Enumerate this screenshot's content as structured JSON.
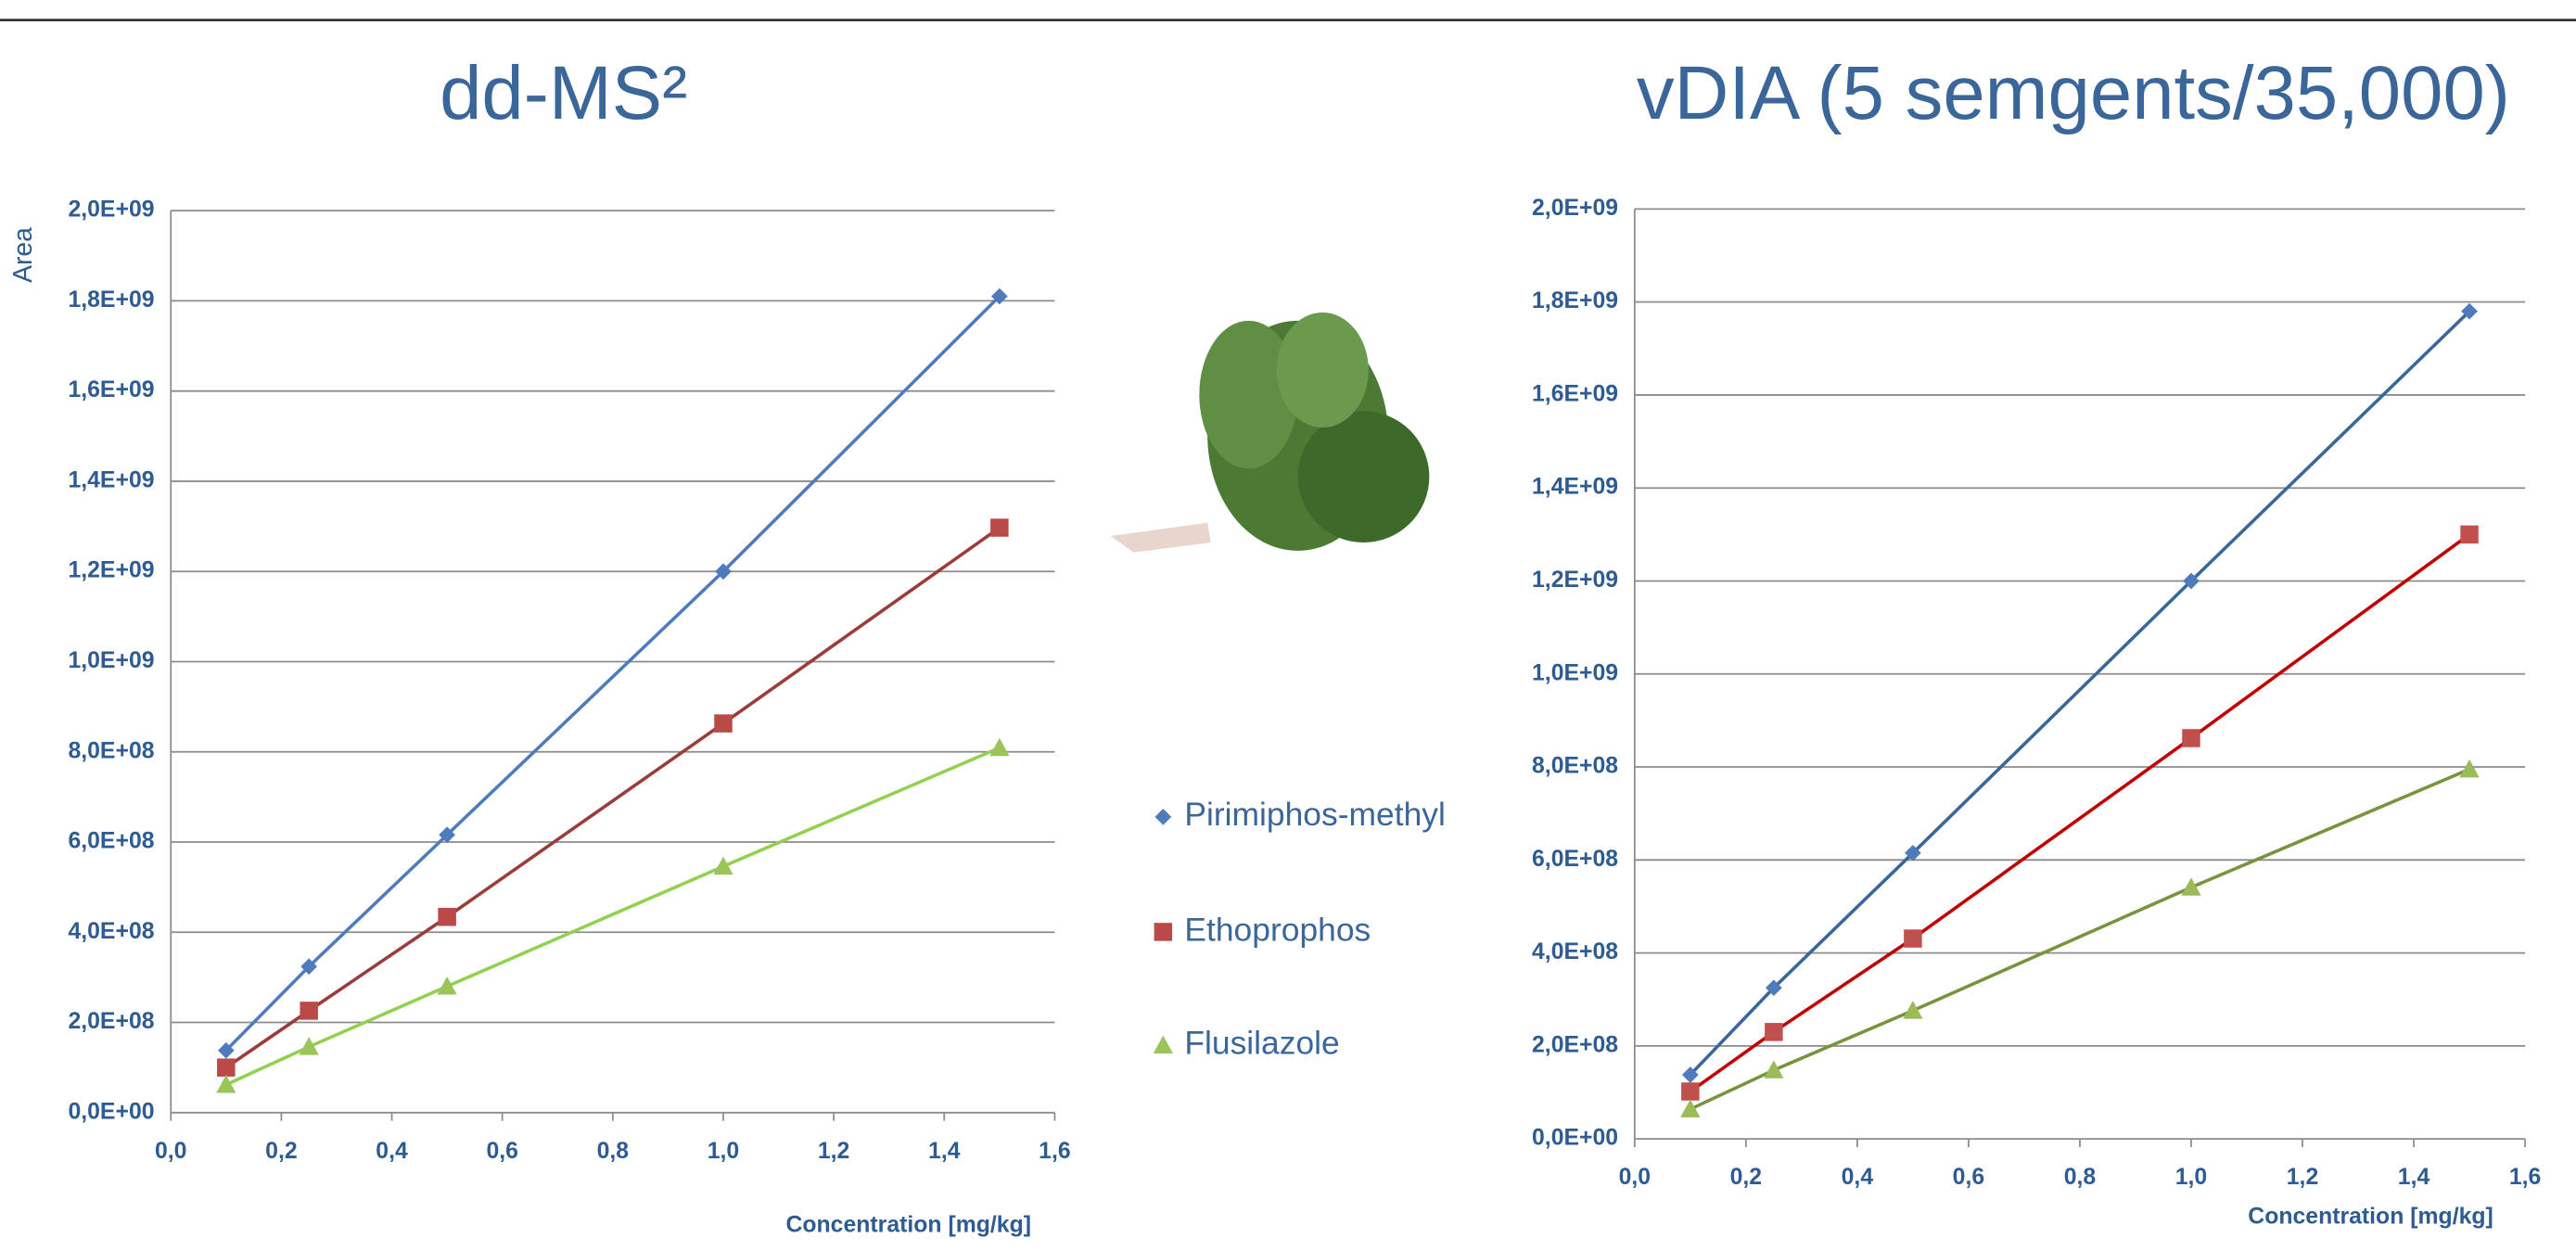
{
  "chart_data": [
    {
      "type": "line",
      "title": "dd-MS²",
      "y_label": "Area",
      "x_label": "Concentration [mg/kg]",
      "x": [
        0.1,
        0.25,
        0.5,
        1.0,
        1.5
      ],
      "series": [
        {
          "name": "Pirimiphos-methyl",
          "color": "#4f7bbd",
          "marker": "diamond",
          "values": [
            138000000,
            324000000,
            616000000,
            1200000000,
            1810000000
          ]
        },
        {
          "name": "Ethoprophos",
          "color": "#b94a48",
          "line_color": "#9b3b3a",
          "marker": "square",
          "values": [
            100000000,
            226000000,
            434000000,
            863000000,
            1297000000
          ]
        },
        {
          "name": "Flusilazole",
          "color": "#9bc55a",
          "line_color": "#92d050",
          "marker": "triangle",
          "values": [
            62000000,
            146000000,
            280000000,
            546000000,
            809000000
          ]
        }
      ],
      "xlim": [
        0,
        1.6
      ],
      "ylim": [
        0,
        2000000000
      ],
      "xticks": [
        {
          "value": 0,
          "label": "0,0"
        },
        {
          "value": 0.2,
          "label": "0,2"
        },
        {
          "value": 0.4,
          "label": "0,4"
        },
        {
          "value": 0.6,
          "label": "0,6"
        },
        {
          "value": 0.8,
          "label": "0,8"
        },
        {
          "value": 1.0,
          "label": "1,0"
        },
        {
          "value": 1.2,
          "label": "1,2"
        },
        {
          "value": 1.4,
          "label": "1,4"
        },
        {
          "value": 1.6,
          "label": "1,6"
        }
      ],
      "yticks": [
        {
          "value": 0,
          "label": "0,0E+00"
        },
        {
          "value": 200000000,
          "label": "2,0E+08"
        },
        {
          "value": 400000000,
          "label": "4,0E+08"
        },
        {
          "value": 600000000,
          "label": "6,0E+08"
        },
        {
          "value": 800000000,
          "label": "8,0E+08"
        },
        {
          "value": 1000000000,
          "label": "1,0E+09"
        },
        {
          "value": 1200000000,
          "label": "1,2E+09"
        },
        {
          "value": 1400000000,
          "label": "1,4E+09"
        },
        {
          "value": 1600000000,
          "label": "1,6E+09"
        },
        {
          "value": 1800000000,
          "label": "1,8E+09"
        },
        {
          "value": 2000000000,
          "label": "2,0E+09"
        }
      ],
      "grid": true
    },
    {
      "type": "line",
      "title": "vDIA (5 semgents/35,000)",
      "x_label": "Concentration [mg/kg]",
      "x": [
        0.1,
        0.25,
        0.5,
        1.0,
        1.5
      ],
      "series": [
        {
          "color": "#4f7bbd",
          "line_color": "#3a6699",
          "marker": "diamond",
          "values": [
            138000000,
            325000000,
            615000000,
            1200000000,
            1780000000
          ]
        },
        {
          "color": "#c0504d",
          "line_color": "#c00000",
          "marker": "square",
          "values": [
            102000000,
            230000000,
            431000000,
            862000000,
            1300000000
          ]
        },
        {
          "color": "#9bbb59",
          "line_color": "#77933c",
          "marker": "triangle",
          "values": [
            64000000,
            148000000,
            276000000,
            541000000,
            795000000
          ]
        }
      ],
      "xlim": [
        0,
        1.6
      ],
      "ylim": [
        0,
        2000000000
      ],
      "xticks": [
        {
          "value": 0,
          "label": "0,0"
        },
        {
          "value": 0.2,
          "label": "0,2"
        },
        {
          "value": 0.4,
          "label": "0,4"
        },
        {
          "value": 0.6,
          "label": "0,6"
        },
        {
          "value": 0.8,
          "label": "0,8"
        },
        {
          "value": 1.0,
          "label": "1,0"
        },
        {
          "value": 1.2,
          "label": "1,2"
        },
        {
          "value": 1.4,
          "label": "1,4"
        },
        {
          "value": 1.6,
          "label": "1,6"
        }
      ],
      "yticks": [
        {
          "value": 0,
          "label": "0,0E+00"
        },
        {
          "value": 200000000,
          "label": "2,0E+08"
        },
        {
          "value": 400000000,
          "label": "4,0E+08"
        },
        {
          "value": 600000000,
          "label": "6,0E+08"
        },
        {
          "value": 800000000,
          "label": "8,0E+08"
        },
        {
          "value": 1000000000,
          "label": "1,0E+09"
        },
        {
          "value": 1200000000,
          "label": "1,2E+09"
        },
        {
          "value": 1400000000,
          "label": "1,4E+09"
        },
        {
          "value": 1600000000,
          "label": "1,6E+09"
        },
        {
          "value": 1800000000,
          "label": "1,8E+09"
        },
        {
          "value": 2000000000,
          "label": "2,0E+09"
        }
      ],
      "grid": true
    }
  ]
}
